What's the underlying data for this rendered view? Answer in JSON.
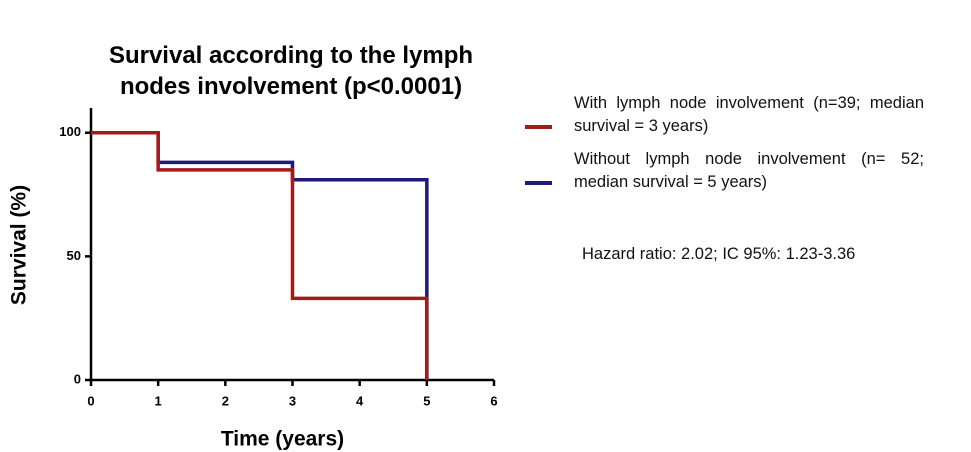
{
  "chart_data": {
    "type": "step",
    "title": "Survival according to the lymph nodes involvement (p<0.0001)",
    "x_label": "Time (years)",
    "y_label": "Survival (%)",
    "x": [
      0,
      1,
      3,
      5
    ],
    "series": [
      {
        "name": "Without lymph node involvement (n= 52; median survival = 5 years)",
        "color": "#1f1a7a",
        "values": [
          100,
          88,
          81,
          0
        ]
      },
      {
        "name": "With lymph node involvement (n=39; median survival = 3 years)",
        "color": "#a01c1c",
        "values": [
          100,
          85,
          33,
          0
        ]
      }
    ],
    "legend_order": [
      1,
      0
    ],
    "annotation": "Hazard ratio: 2.02; IC 95%: 1.23-3.36",
    "xlim": [
      0,
      6
    ],
    "xticks": [
      0,
      1,
      2,
      3,
      4,
      5,
      6
    ],
    "ylim": [
      0,
      110
    ],
    "yticks": [
      0,
      50,
      100
    ]
  }
}
